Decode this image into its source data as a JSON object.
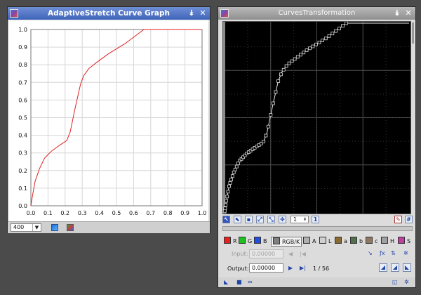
{
  "left_window": {
    "title": "AdaptiveStretch Curve Graph",
    "zoom": "400"
  },
  "right_window": {
    "title": "CurvesTransformation",
    "point_spin": "1",
    "channels": [
      {
        "key": "R",
        "label": "R",
        "color": "#e82020"
      },
      {
        "key": "G",
        "label": "G",
        "color": "#20c020"
      },
      {
        "key": "B",
        "label": "B",
        "color": "#2050e0"
      },
      {
        "key": "RGBK",
        "label": "RGB/K",
        "color": "#808080"
      },
      {
        "key": "A",
        "label": "A",
        "color": "#b0b0b0"
      },
      {
        "key": "L",
        "label": "L",
        "color": "#d0d0d0"
      },
      {
        "key": "a",
        "label": "a",
        "color": "#8a6a30"
      },
      {
        "key": "b",
        "label": "b",
        "color": "#507050"
      },
      {
        "key": "c",
        "label": "c",
        "color": "#907860"
      },
      {
        "key": "H",
        "label": "H",
        "color": "#a0a0a0"
      },
      {
        "key": "S",
        "label": "S",
        "color": "#c040a0"
      }
    ],
    "input_label": "Input:",
    "input_value": "0.00000",
    "output_label": "Output:",
    "output_value": "0.00000",
    "point_counter": "1 / 56"
  },
  "chart_data": {
    "type": "line",
    "title": "",
    "xlabel": "",
    "ylabel": "",
    "xlim": [
      0,
      1
    ],
    "ylim": [
      0,
      1
    ],
    "xticks": [
      "0.0",
      "0.1",
      "0.2",
      "0.3",
      "0.4",
      "0.5",
      "0.6",
      "0.7",
      "0.8",
      "0.9",
      "1.0"
    ],
    "yticks": [
      "0.0",
      "0.1",
      "0.2",
      "0.3",
      "0.4",
      "0.5",
      "0.6",
      "0.7",
      "0.8",
      "0.9",
      "1.0"
    ],
    "grid": true,
    "series": [
      {
        "color": "#e02020",
        "x": [
          0,
          0.01,
          0.025,
          0.05,
          0.08,
          0.12,
          0.17,
          0.21,
          0.23,
          0.26,
          0.29,
          0.31,
          0.34,
          0.38,
          0.45,
          0.55,
          0.66,
          0.7,
          0.8,
          0.9,
          1.0
        ],
        "y": [
          0,
          0.06,
          0.14,
          0.21,
          0.27,
          0.31,
          0.345,
          0.37,
          0.42,
          0.56,
          0.69,
          0.74,
          0.78,
          0.81,
          0.86,
          0.92,
          1.0,
          1.0,
          1.0,
          1.0,
          1.0
        ]
      }
    ]
  }
}
